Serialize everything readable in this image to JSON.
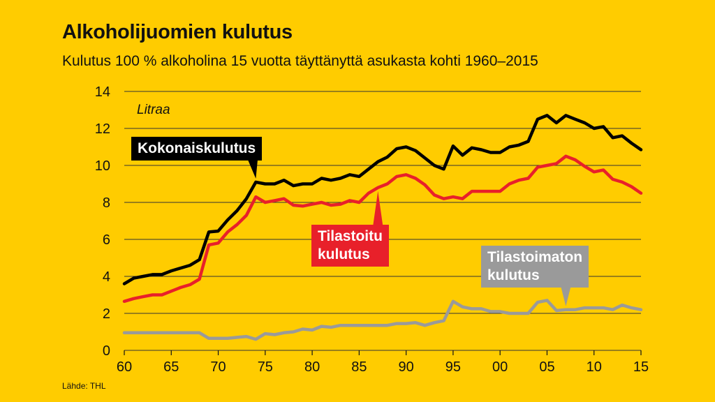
{
  "chart_data": {
    "type": "line",
    "title": "Alkoholijuomien kulutus",
    "subtitle": "Kulutus 100 % alkoholina 15 vuotta täyttänyttä asukasta kohti 1960–2015",
    "unit_label": "Litraa",
    "source": "Lähde: THL",
    "x": [
      1960,
      1961,
      1962,
      1963,
      1964,
      1965,
      1966,
      1967,
      1968,
      1969,
      1970,
      1971,
      1972,
      1973,
      1974,
      1975,
      1976,
      1977,
      1978,
      1979,
      1980,
      1981,
      1982,
      1983,
      1984,
      1985,
      1986,
      1987,
      1988,
      1989,
      1990,
      1991,
      1992,
      1993,
      1994,
      1995,
      1996,
      1997,
      1998,
      1999,
      2000,
      2001,
      2002,
      2003,
      2004,
      2005,
      2006,
      2007,
      2008,
      2009,
      2010,
      2011,
      2012,
      2013,
      2014,
      2015
    ],
    "x_tick_values": [
      1960,
      1965,
      1970,
      1975,
      1980,
      1985,
      1990,
      1995,
      2000,
      2005,
      2010,
      2015
    ],
    "x_tick_labels": [
      "60",
      "65",
      "70",
      "75",
      "80",
      "85",
      "90",
      "95",
      "00",
      "05",
      "10",
      "15"
    ],
    "y_ticks": [
      0,
      2,
      4,
      6,
      8,
      10,
      12,
      14
    ],
    "xlim": [
      1960,
      2015
    ],
    "ylim": [
      0,
      14
    ],
    "grid": true,
    "series": [
      {
        "name": "Kokonaiskulutus",
        "color": "#000000",
        "label_lines": [
          "Kokonaiskulutus"
        ],
        "values": [
          3.6,
          3.9,
          4.0,
          4.1,
          4.1,
          4.3,
          4.45,
          4.6,
          4.9,
          6.4,
          6.45,
          7.05,
          7.55,
          8.2,
          9.1,
          9.0,
          9.0,
          9.2,
          8.9,
          9.0,
          9.0,
          9.3,
          9.2,
          9.3,
          9.5,
          9.4,
          9.8,
          10.2,
          10.45,
          10.9,
          11.0,
          10.8,
          10.4,
          10.0,
          9.8,
          11.05,
          10.55,
          10.95,
          10.85,
          10.7,
          10.7,
          11.0,
          11.1,
          11.3,
          12.5,
          12.7,
          12.3,
          12.7,
          12.5,
          12.3,
          12.0,
          12.1,
          11.5,
          11.6,
          11.2,
          10.85
        ]
      },
      {
        "name": "Tilastoitu kulutus",
        "color": "#E8202A",
        "label_lines": [
          "Tilastoitu",
          "kulutus"
        ],
        "values": [
          2.65,
          2.8,
          2.9,
          3.0,
          3.0,
          3.2,
          3.4,
          3.55,
          3.85,
          5.7,
          5.8,
          6.4,
          6.8,
          7.3,
          8.3,
          8.0,
          8.1,
          8.2,
          7.85,
          7.8,
          7.9,
          8.0,
          7.85,
          7.9,
          8.1,
          8.0,
          8.5,
          8.8,
          9.0,
          9.4,
          9.5,
          9.3,
          8.95,
          8.4,
          8.2,
          8.3,
          8.2,
          8.6,
          8.6,
          8.6,
          8.6,
          9.0,
          9.2,
          9.3,
          9.9,
          10.0,
          10.1,
          10.5,
          10.3,
          9.95,
          9.65,
          9.75,
          9.25,
          9.1,
          8.85,
          8.5
        ]
      },
      {
        "name": "Tilastoimaton kulutus",
        "color": "#9A9A9A",
        "label_lines": [
          "Tilastoimaton",
          "kulutus"
        ],
        "values": [
          0.95,
          0.95,
          0.95,
          0.95,
          0.95,
          0.95,
          0.95,
          0.95,
          0.95,
          0.65,
          0.65,
          0.65,
          0.7,
          0.75,
          0.6,
          0.9,
          0.85,
          0.95,
          1.0,
          1.15,
          1.1,
          1.3,
          1.25,
          1.35,
          1.35,
          1.35,
          1.35,
          1.35,
          1.35,
          1.45,
          1.45,
          1.5,
          1.35,
          1.5,
          1.6,
          2.65,
          2.35,
          2.25,
          2.25,
          2.1,
          2.1,
          2.0,
          2.0,
          2.0,
          2.6,
          2.7,
          2.15,
          2.2,
          2.2,
          2.3,
          2.3,
          2.3,
          2.2,
          2.45,
          2.3,
          2.2
        ]
      }
    ]
  },
  "colors": {
    "background": "#FFCC00",
    "grid": "#333333",
    "label_text_black_box": "#FFFFFF",
    "label_text_grey_box": "#FFFFFF"
  }
}
